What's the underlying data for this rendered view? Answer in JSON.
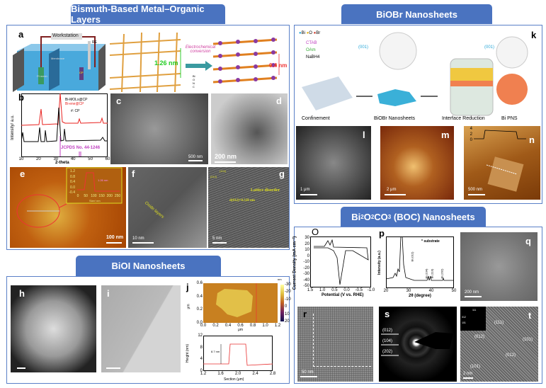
{
  "banners": {
    "mol": "Bismuth-Based Metal–Organic Layers",
    "biobr": "BiOBr Nanosheets",
    "boc_pre": "Bi",
    "boc_s1": "2",
    "boc_mid": "O",
    "boc_s2": "2",
    "boc_mid2": "CO",
    "boc_s3": "3",
    "boc_post": " (BOC) Nanosheets",
    "bioi": "BiOI Nanosheets"
  },
  "panel_a": {
    "label": "a",
    "workstation": "Workstation",
    "re": "RE",
    "membrane": "Membrane",
    "pt_mesh": "Pt mesh",
    "we": "CP",
    "spacing1": "1.26 nm",
    "conversion": "Electrochemical conversion",
    "spacing2": "0.4 nm",
    "legend": [
      "Bi",
      "O",
      "N",
      "C"
    ]
  },
  "panel_b": {
    "label": "b",
    "xlabel": "2-theta",
    "ylabel": "Intensity/ a.u.",
    "xticks": [
      "10",
      "20",
      "30",
      "40",
      "50",
      "60"
    ],
    "legend": [
      "Bi-MOLs@CP",
      "Bi-ene@CP"
    ],
    "cp_note": "#: CP",
    "jcpds": "JCPDS No. 44-1246",
    "colors": {
      "mols": "#000000",
      "ene": "#e8211e",
      "ref": "#c040c0"
    }
  },
  "panel_c": {
    "label": "c",
    "scale": "500 nm"
  },
  "panel_d": {
    "label": "d",
    "scale": "200 nm"
  },
  "panel_e": {
    "label": "e",
    "scale": "100 nm",
    "inset_height": "1.26 nm",
    "inset_xlabel": "Size/ nm",
    "inset_ylabel": "Height/ nm",
    "inset_xticks": [
      "0",
      "50",
      "100",
      "150",
      "200",
      "250"
    ],
    "inset_yticks": [
      "1.2",
      "0.8",
      "0.4",
      "0.0",
      "-0.4"
    ]
  },
  "panel_f": {
    "label": "f",
    "scale": "10 nm",
    "note": "Oxide layers"
  },
  "panel_g": {
    "label": "g",
    "scale": "5 nm",
    "note": "Lattice disorder",
    "d_spacing": "d(012)=0.328 nm",
    "inset_104": "(104)",
    "inset_012": "(012)"
  },
  "panel_h": {
    "label": "h"
  },
  "panel_i": {
    "label": "i"
  },
  "panel_j": {
    "label": "j",
    "map_xticks": [
      "0.0",
      "0.2",
      "0.4",
      "0.6",
      "0.8",
      "1.0",
      "1.2"
    ],
    "map_yticks": [
      "0.6",
      "0.4",
      "0.2",
      "0.0"
    ],
    "map_xlabel": "μm",
    "map_ylabel": "μm",
    "colorbar_unit": "nm",
    "colorbar_ticks": [
      "-30",
      "-20",
      "-10",
      "0",
      "10",
      "20"
    ],
    "profile_xticks": [
      "1.2",
      "1.6",
      "2.0",
      "2.4",
      "2.8"
    ],
    "profile_yticks": [
      "12",
      "8",
      "4",
      "0"
    ],
    "profile_xlabel": "Section (μm)",
    "profile_ylabel": "Height (nm)",
    "step": "8.7 nm",
    "line_color": "#e83030"
  },
  "panel_k": {
    "label": "k",
    "legend_atoms": [
      "Bi",
      "O",
      "Br"
    ],
    "legend_colors": [
      "#2aa8d8",
      "#e8b820",
      "#d04030"
    ],
    "ctab": "CTAB",
    "oam": "OAm",
    "nabh4": "NaBH4",
    "facet1": "(001)",
    "facet2": "(001)",
    "steps": [
      "Confinement",
      "BiOBr Nanosheets",
      "Interface Reduction",
      "Bi PNS"
    ]
  },
  "panel_l": {
    "label": "l",
    "scale": "1 μm"
  },
  "panel_m": {
    "label": "m",
    "scale": "2 μm"
  },
  "panel_n": {
    "label": "n",
    "scale": "500 nm",
    "inset_yticks": [
      "4",
      "2",
      "0"
    ],
    "inset_ylabel": "nm"
  },
  "panel_o": {
    "label": "O",
    "xlabel": "Potential (V vs. RHE)",
    "ylabel": "Current Density (mA cm⁻²)",
    "xticks": [
      "1.5",
      "1.0",
      "0.5",
      "0.0",
      "-0.5",
      "-1.0"
    ],
    "yticks": [
      "30",
      "20",
      "10",
      "0",
      "-10",
      "-20",
      "-30",
      "-40",
      "-50"
    ]
  },
  "panel_p": {
    "label": "p",
    "xlabel": "2θ (degree)",
    "ylabel": "Intensity (a.u.)",
    "xticks": [
      "20",
      "30",
      "40",
      "50"
    ],
    "legend": "* substrate",
    "peaks": [
      "Bi (012)",
      "Bi (104)",
      "Bi (110)",
      "Bi (202)"
    ]
  },
  "panel_q": {
    "label": "q",
    "scale": "200 nm"
  },
  "panel_r": {
    "label": "r",
    "scale": "50 nm"
  },
  "panel_s": {
    "label": "s",
    "rings": [
      "(012)",
      "(104)",
      "(202)"
    ]
  },
  "panel_t": {
    "label": "t",
    "scale": "2 nm",
    "planes": [
      "(111)",
      "(012)",
      "(101)",
      "(012)",
      "(101)"
    ],
    "inset_spots": [
      "111",
      "012",
      "101"
    ]
  }
}
